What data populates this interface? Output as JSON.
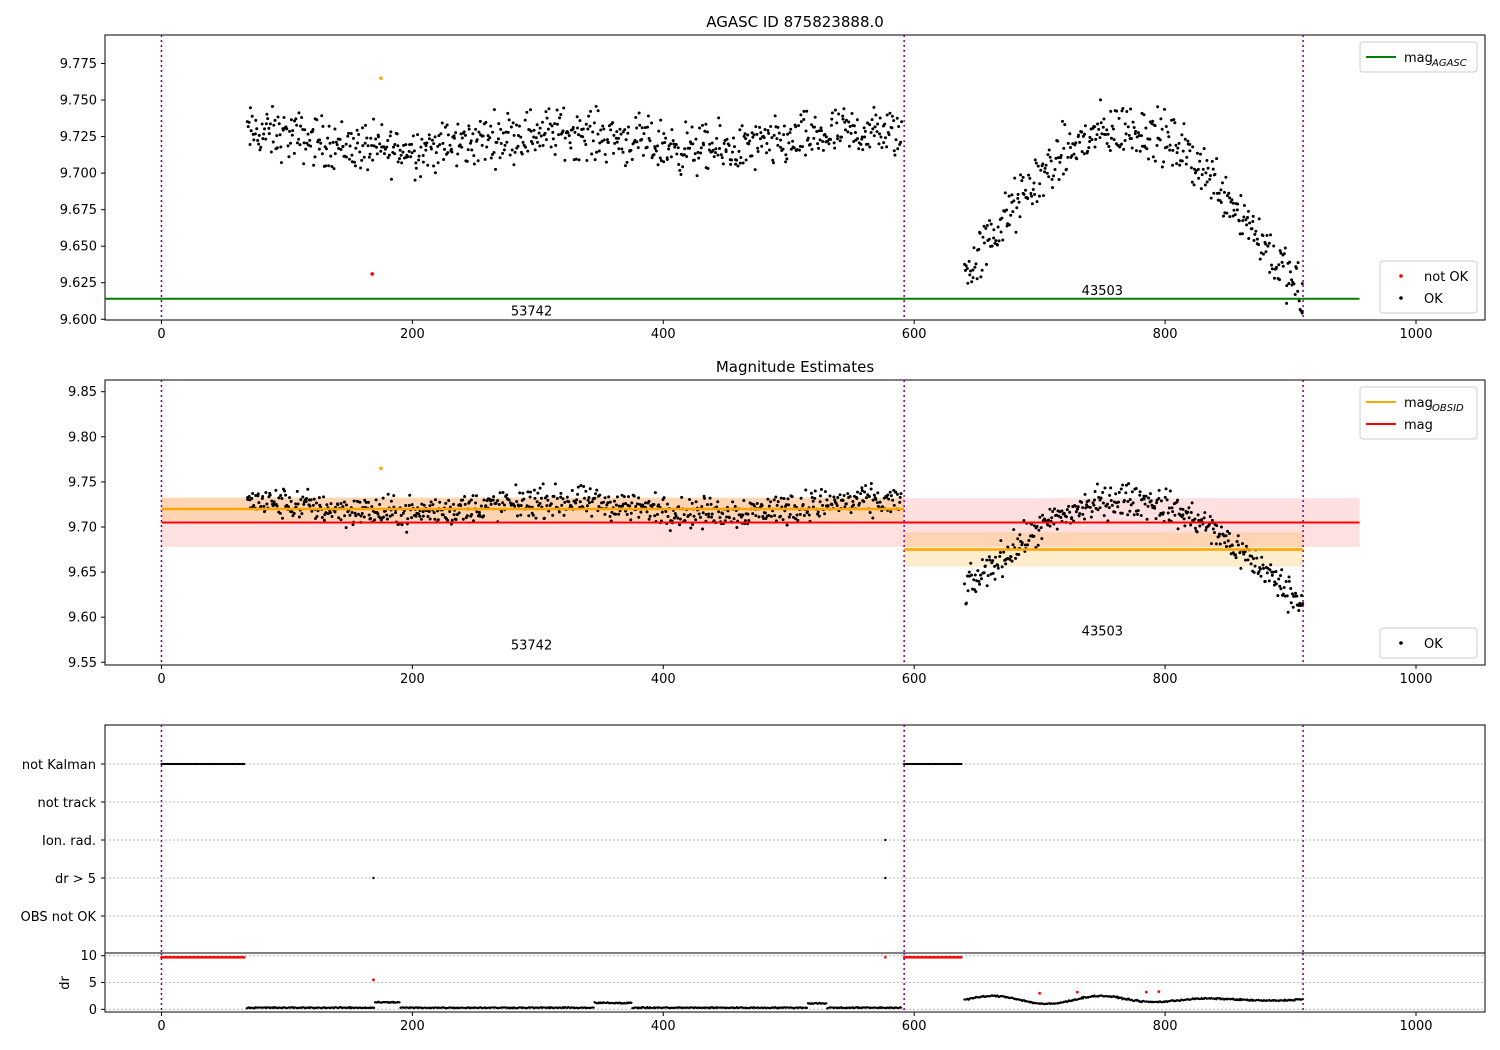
{
  "chart_data": [
    {
      "type": "scatter",
      "title": "AGASC ID 875823888.0",
      "xlabel": "",
      "ylabel": "",
      "xlim": [
        -45,
        1055
      ],
      "ylim": [
        9.5995,
        9.7945
      ],
      "xticks": [
        "0",
        "200",
        "400",
        "600",
        "800",
        "1000"
      ],
      "yticks": [
        "9.600",
        "9.625",
        "9.650",
        "9.675",
        "9.700",
        "9.725",
        "9.750",
        "9.775"
      ],
      "vlines": [
        0,
        592,
        910
      ],
      "obsid_labels": [
        {
          "text": "53742",
          "x": 295,
          "y": 9.606
        },
        {
          "text": "43503",
          "x": 750,
          "y": 9.62
        }
      ],
      "lines": [
        {
          "name": "mag_AGASC",
          "y": 9.614,
          "x": [
            -45,
            955
          ],
          "color": "#008000"
        }
      ],
      "segments": [
        {
          "x": [
            68,
            590
          ],
          "mean": 9.722,
          "spread": 0.012,
          "pattern": "flat"
        },
        {
          "x": [
            640,
            910
          ],
          "mean": 9.672,
          "spread": 0.013,
          "pattern": "arc"
        }
      ],
      "extra_points": [
        {
          "x": 175,
          "y": 9.765,
          "color": "#ffa500"
        },
        {
          "x": 168,
          "y": 9.631,
          "color": "#ff0000"
        }
      ],
      "legend_upper": {
        "location": "upper right",
        "entries": [
          {
            "label": "mag",
            "sub": "AGASC",
            "color": "#008000",
            "kind": "line"
          }
        ]
      },
      "legend_lower": {
        "location": "lower right",
        "entries": [
          {
            "label": "not OK",
            "color": "#ff0000",
            "kind": "dot"
          },
          {
            "label": "OK",
            "color": "#000000",
            "kind": "dot"
          }
        ]
      }
    },
    {
      "type": "scatter",
      "title": "Magnitude Estimates",
      "xlabel": "",
      "ylabel": "",
      "xlim": [
        -45,
        1055
      ],
      "ylim": [
        9.547,
        9.863
      ],
      "xticks": [
        "0",
        "200",
        "400",
        "600",
        "800",
        "1000"
      ],
      "yticks": [
        "9.55",
        "9.60",
        "9.65",
        "9.70",
        "9.75",
        "9.80",
        "9.85"
      ],
      "vlines": [
        0,
        592,
        910
      ],
      "obsid_labels": [
        {
          "text": "53742",
          "x": 295,
          "y": 9.57
        },
        {
          "text": "43503",
          "x": 750,
          "y": 9.585
        }
      ],
      "mag": {
        "y": 9.705,
        "band": [
          9.678,
          9.732
        ],
        "x": [
          0,
          955
        ],
        "color": "#ff0000"
      },
      "mag_obsid": [
        {
          "x": [
            0,
            592
          ],
          "y": 9.72,
          "band": [
            9.707,
            9.733
          ]
        },
        {
          "x": [
            592,
            910
          ],
          "y": 9.675,
          "band": [
            9.656,
            9.694
          ]
        }
      ],
      "segments": [
        {
          "x": [
            68,
            590
          ],
          "mean": 9.722,
          "spread": 0.012,
          "pattern": "flat"
        },
        {
          "x": [
            640,
            910
          ],
          "mean": 9.672,
          "spread": 0.013,
          "pattern": "arc"
        }
      ],
      "extra_points": [
        {
          "x": 175,
          "y": 9.765,
          "color": "#ffa500"
        }
      ],
      "legend_upper": {
        "location": "upper right",
        "entries": [
          {
            "label": "mag",
            "sub": "OBSID",
            "color": "#ffa500",
            "kind": "line"
          },
          {
            "label": "mag",
            "sub": "",
            "color": "#ff0000",
            "kind": "line"
          }
        ]
      },
      "legend_lower": {
        "location": "lower right",
        "entries": [
          {
            "label": "OK",
            "color": "#000000",
            "kind": "dot"
          }
        ]
      }
    },
    {
      "type": "scatter",
      "title": "",
      "xlabel": "",
      "ylabel": "",
      "xlim": [
        -45,
        1055
      ],
      "categories": [
        "not Kalman",
        "not track",
        "Ion. rad.",
        "dr > 5",
        "OBS not OK"
      ],
      "flag_segments": [
        {
          "category": "not Kalman",
          "x": [
            0,
            67
          ]
        },
        {
          "category": "not Kalman",
          "x": [
            592,
            638
          ]
        }
      ],
      "flag_points": [
        {
          "category": "Ion. rad.",
          "x": 577
        },
        {
          "category": "dr > 5",
          "x": 169
        },
        {
          "category": "dr > 5",
          "x": 577
        }
      ],
      "vlines": [
        0,
        592,
        910
      ]
    },
    {
      "type": "scatter",
      "title": "",
      "xlabel": "",
      "ylabel": "dr",
      "xlim": [
        -45,
        1055
      ],
      "ylim": [
        -0.5,
        10.5
      ],
      "xticks": [
        "0",
        "200",
        "400",
        "600",
        "800",
        "1000"
      ],
      "yticks": [
        "0",
        "5",
        "10"
      ],
      "vlines": [
        0,
        592,
        910
      ],
      "clipped_red": [
        {
          "x": [
            0,
            67
          ],
          "y": 9.7
        },
        {
          "x": [
            592,
            638
          ],
          "y": 9.7
        },
        {
          "x": [
            577,
            577
          ],
          "y": 9.7
        }
      ],
      "red_points": [
        {
          "x": 169,
          "y": 5.5
        },
        {
          "x": 700,
          "y": 3
        },
        {
          "x": 730,
          "y": 3.2
        },
        {
          "x": 785,
          "y": 3.2
        },
        {
          "x": 795,
          "y": 3.3
        }
      ],
      "low_segments": [
        {
          "x": [
            68,
            590
          ],
          "mean": 0.3,
          "spread": 0.15,
          "bumps": [
            [
              170,
              190,
              1.3
            ],
            [
              345,
              375,
              1.2
            ],
            [
              515,
              530,
              1.1
            ]
          ]
        }
      ],
      "wave_segment": {
        "x": [
          640,
          910
        ],
        "mean": 1.8,
        "amp": 0.8
      }
    }
  ]
}
